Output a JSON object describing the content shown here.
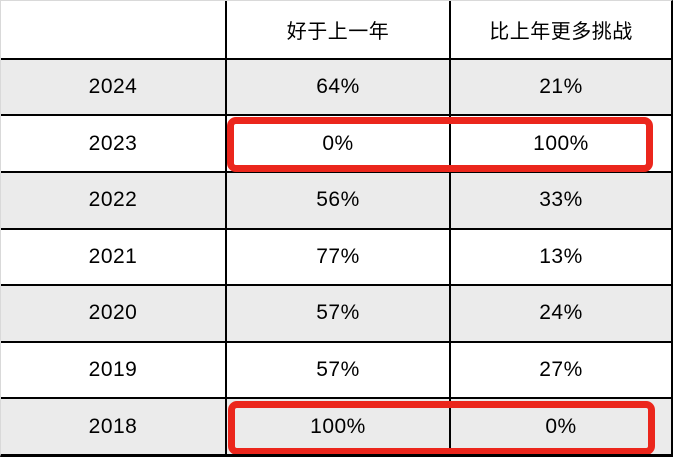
{
  "table": {
    "columns": [
      "",
      "好于上一年",
      "比上年更多挑战"
    ],
    "rows": [
      {
        "year": "2024",
        "better": "64%",
        "challenge": "21%",
        "highlighted": false
      },
      {
        "year": "2023",
        "better": "0%",
        "challenge": "100%",
        "highlighted": true
      },
      {
        "year": "2022",
        "better": "56%",
        "challenge": "33%",
        "highlighted": false
      },
      {
        "year": "2021",
        "better": "77%",
        "challenge": "13%",
        "highlighted": false
      },
      {
        "year": "2020",
        "better": "57%",
        "challenge": "24%",
        "highlighted": false
      },
      {
        "year": "2019",
        "better": "57%",
        "challenge": "27%",
        "highlighted": false
      },
      {
        "year": "2018",
        "better": "100%",
        "challenge": "0%",
        "highlighted": true
      }
    ],
    "colors": {
      "highlight_red": "#eb261c",
      "row_alt_gray": "#ebebeb",
      "grid_line": "#000000",
      "background": "#ffffff"
    }
  },
  "chart_data": {
    "type": "table",
    "title": "",
    "categories": [
      "2024",
      "2023",
      "2022",
      "2021",
      "2020",
      "2019",
      "2018"
    ],
    "series": [
      {
        "name": "好于上一年",
        "values": [
          64,
          0,
          56,
          77,
          57,
          57,
          100
        ]
      },
      {
        "name": "比上年更多挑战",
        "values": [
          21,
          100,
          33,
          13,
          24,
          27,
          0
        ]
      }
    ],
    "unit": "%",
    "highlighted_rows": [
      "2023",
      "2018"
    ],
    "layout": {
      "row_striping": true,
      "grid": true,
      "annotations": "red boxes around 2023 and 2018 value cells"
    }
  }
}
